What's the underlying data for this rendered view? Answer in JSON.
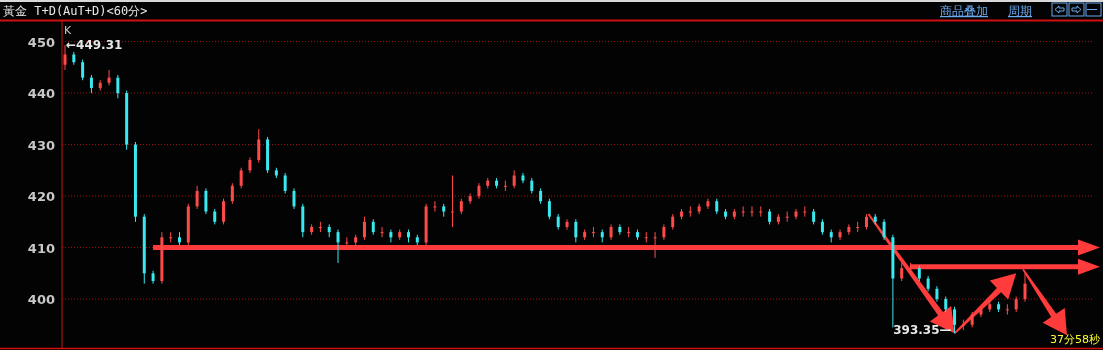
{
  "chart_data": {
    "type": "candlestick",
    "title": "黃金 T+D(AuT+D)<60分>",
    "categories": [
      null,
      null,
      null,
      null,
      null,
      null,
      null,
      null,
      null,
      null,
      null,
      null,
      null,
      null,
      null,
      null,
      null,
      null,
      null,
      null,
      null,
      null,
      null,
      null,
      null,
      null,
      null,
      null,
      null,
      null,
      null,
      null,
      null,
      null,
      null,
      null,
      null,
      null,
      null,
      null,
      null,
      null,
      null,
      null,
      null,
      null,
      null,
      null,
      null,
      null,
      null,
      null,
      null,
      null,
      null,
      null,
      null,
      null,
      null,
      null,
      null,
      null,
      null,
      null,
      null,
      null,
      null,
      null,
      null,
      null,
      null,
      null,
      null,
      null,
      null,
      null,
      null,
      null,
      null,
      null,
      null,
      null,
      null,
      null,
      null,
      null,
      null,
      null,
      null,
      null,
      null,
      null,
      null,
      null,
      null,
      null,
      null,
      null,
      null,
      null,
      null,
      null,
      null,
      null,
      null,
      null,
      null,
      null,
      null,
      null
    ],
    "ohlc": [
      [
        445.5,
        449.31,
        444.5,
        447.5
      ],
      [
        447.5,
        448,
        445.5,
        446
      ],
      [
        446,
        446.5,
        442.5,
        443
      ],
      [
        443,
        443.5,
        440,
        441
      ],
      [
        441,
        442.5,
        440.5,
        442
      ],
      [
        442,
        444.5,
        441.5,
        443
      ],
      [
        443,
        443.5,
        439,
        440
      ],
      [
        440,
        440.5,
        429,
        430
      ],
      [
        430,
        430.5,
        415,
        416
      ],
      [
        416,
        416.5,
        403,
        405
      ],
      [
        405,
        405.5,
        403,
        403.5
      ],
      [
        403.5,
        413,
        403,
        412
      ],
      [
        412,
        413,
        411,
        412
      ],
      [
        412,
        413,
        410.5,
        411
      ],
      [
        411,
        418.5,
        410.5,
        418
      ],
      [
        418,
        422,
        417.5,
        421
      ],
      [
        421,
        421.5,
        416.5,
        417
      ],
      [
        417,
        417.5,
        414.5,
        415
      ],
      [
        415,
        419.5,
        414.5,
        419
      ],
      [
        419,
        422.5,
        418.5,
        422
      ],
      [
        422,
        425.5,
        421.5,
        425
      ],
      [
        425,
        427.5,
        424.5,
        427
      ],
      [
        427,
        433,
        426.5,
        431
      ],
      [
        431,
        431.5,
        424.5,
        425
      ],
      [
        425,
        425.5,
        423.5,
        424
      ],
      [
        424,
        424.5,
        420.5,
        421
      ],
      [
        421,
        421.5,
        417.5,
        418
      ],
      [
        418,
        418.5,
        412,
        413
      ],
      [
        413,
        414.5,
        412.5,
        414
      ],
      [
        414,
        415,
        413,
        414
      ],
      [
        414,
        414.5,
        412,
        413
      ],
      [
        413,
        413.5,
        407,
        411
      ],
      [
        411,
        412,
        410,
        411
      ],
      [
        411,
        412.5,
        410.5,
        412
      ],
      [
        412,
        416,
        411.5,
        415
      ],
      [
        415,
        415.5,
        412.5,
        413
      ],
      [
        413,
        414,
        412,
        413
      ],
      [
        413,
        413.5,
        411,
        412
      ],
      [
        412,
        413.5,
        411.5,
        413
      ],
      [
        413,
        413.5,
        411,
        412
      ],
      [
        412,
        412.5,
        410.5,
        411
      ],
      [
        411,
        418.5,
        410.5,
        418
      ],
      [
        418,
        419,
        417,
        418
      ],
      [
        418,
        418.5,
        416,
        417
      ],
      [
        417,
        424,
        414,
        417
      ],
      [
        417,
        419.5,
        416.5,
        419
      ],
      [
        419,
        420.5,
        418.5,
        420
      ],
      [
        420,
        422.5,
        419.5,
        422
      ],
      [
        422,
        423.5,
        421.5,
        423
      ],
      [
        423,
        423.5,
        421.5,
        422
      ],
      [
        422,
        423,
        421,
        422
      ],
      [
        422,
        425,
        421.5,
        424
      ],
      [
        424,
        424.5,
        422.5,
        423
      ],
      [
        423,
        423.5,
        420.5,
        421
      ],
      [
        421,
        421.5,
        418.5,
        419
      ],
      [
        419,
        419.5,
        415.5,
        416
      ],
      [
        416,
        416.5,
        413.5,
        414
      ],
      [
        414,
        415.5,
        413.5,
        415
      ],
      [
        415,
        415.5,
        411,
        412
      ],
      [
        412,
        413.5,
        411.5,
        413
      ],
      [
        413,
        414,
        412,
        413
      ],
      [
        413,
        413.5,
        411,
        412
      ],
      [
        412,
        414.5,
        411.5,
        414
      ],
      [
        414,
        414.5,
        412.5,
        413
      ],
      [
        413,
        414,
        412,
        413
      ],
      [
        413,
        413.5,
        411.5,
        412
      ],
      [
        412,
        413,
        411,
        412
      ],
      [
        412,
        413,
        408,
        412
      ],
      [
        412,
        414.5,
        411.5,
        414
      ],
      [
        414,
        416.5,
        413.5,
        416
      ],
      [
        416,
        417.5,
        415.5,
        417
      ],
      [
        417,
        418,
        416,
        417
      ],
      [
        417,
        418.5,
        416.5,
        418
      ],
      [
        418,
        419.5,
        417.5,
        419
      ],
      [
        419,
        419.5,
        416.5,
        417
      ],
      [
        417,
        417.5,
        415.5,
        416
      ],
      [
        416,
        417.5,
        415.5,
        417
      ],
      [
        417,
        418,
        416,
        417
      ],
      [
        417,
        418,
        416,
        417
      ],
      [
        417,
        418,
        416,
        417
      ],
      [
        417,
        417.5,
        414.5,
        415
      ],
      [
        415,
        416.5,
        414.5,
        416
      ],
      [
        416,
        417,
        415,
        416
      ],
      [
        416,
        417.5,
        415.5,
        417
      ],
      [
        417,
        418,
        416,
        417
      ],
      [
        417,
        417.5,
        414.5,
        415
      ],
      [
        415,
        415.5,
        412.5,
        413
      ],
      [
        413,
        413.5,
        411,
        412
      ],
      [
        412,
        413.5,
        411.5,
        413
      ],
      [
        413,
        414.5,
        412.5,
        414
      ],
      [
        414,
        415,
        413,
        414
      ],
      [
        414,
        416.5,
        413.5,
        416
      ],
      [
        416,
        416.5,
        414.5,
        415
      ],
      [
        415,
        415.5,
        411.5,
        412
      ],
      [
        412,
        412.5,
        394.5,
        404
      ],
      [
        404,
        407,
        403.5,
        406
      ],
      [
        406,
        407,
        405,
        406
      ],
      [
        406,
        406.5,
        403.5,
        404
      ],
      [
        404,
        404.5,
        401.5,
        402
      ],
      [
        402,
        402.5,
        399.5,
        400
      ],
      [
        400,
        400.5,
        397.5,
        398
      ],
      [
        398,
        398.5,
        393.35,
        395
      ],
      [
        395,
        396,
        394,
        395
      ],
      [
        395,
        397.5,
        394.5,
        397
      ],
      [
        397,
        398.5,
        396.5,
        398
      ],
      [
        398,
        399.5,
        397.5,
        399
      ],
      [
        399,
        399.5,
        397.5,
        398
      ],
      [
        398,
        399,
        397,
        398
      ],
      [
        398,
        400.5,
        397.5,
        400
      ],
      [
        400,
        405,
        399.5,
        403
      ]
    ],
    "ylim": [
      390.5,
      454
    ],
    "yticks": [
      400,
      410,
      420,
      430,
      440,
      450
    ],
    "grid": "y",
    "ref_lines": [
      {
        "axis": "y",
        "value": 410,
        "color": "#ff3b3b"
      },
      {
        "axis": "y",
        "value": 406.3,
        "color": "#ff3b3b"
      }
    ],
    "annotations": [
      "K",
      "←449.31",
      "393.35—",
      "37分58秒",
      "商品叠加",
      "周期"
    ]
  }
}
